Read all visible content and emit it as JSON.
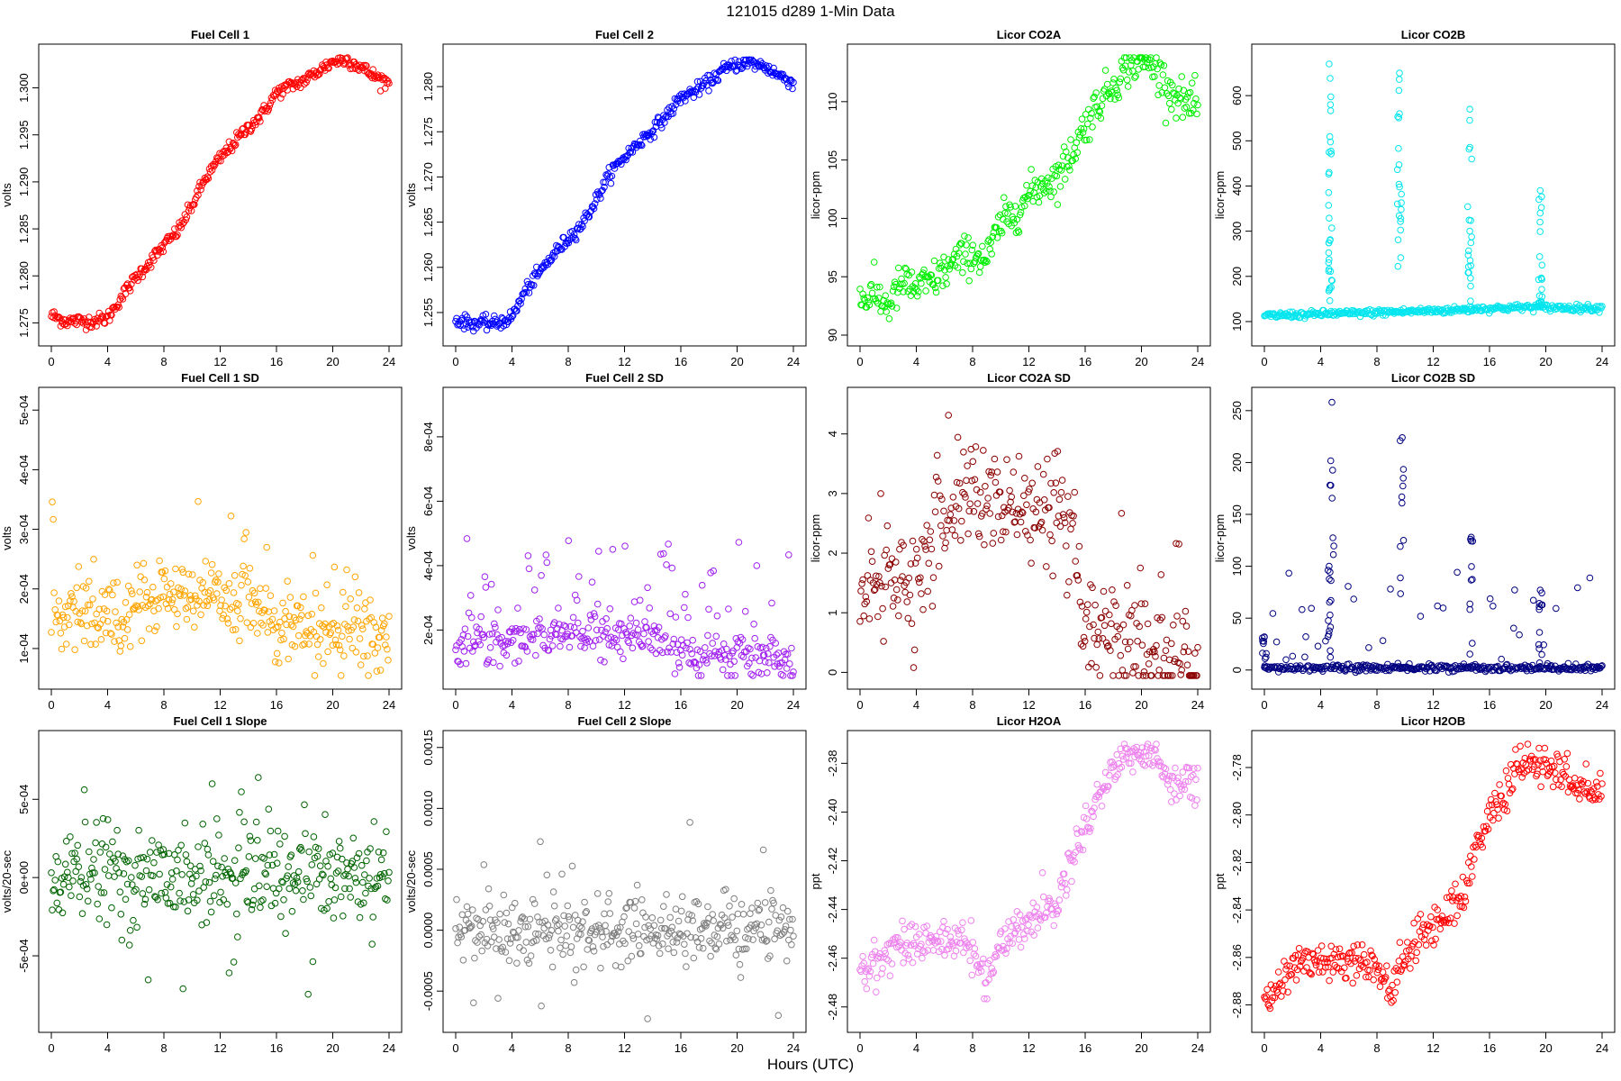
{
  "page": {
    "title": "121015    d289    1-Min Data",
    "xlabel": "Hours (UTC)"
  },
  "chart_data": [
    {
      "type": "scatter",
      "title": "Fuel Cell 1",
      "ylabel": "volts",
      "color": "#ff0000",
      "xlim": [
        0,
        24
      ],
      "xticks": [
        0,
        4,
        8,
        12,
        16,
        20,
        24
      ],
      "xtick_labels": [
        "0",
        "4",
        "8",
        "12",
        "16",
        "20",
        "24"
      ],
      "ylim": [
        1.2737,
        1.3035
      ],
      "yticks": [
        1.275,
        1.28,
        1.285,
        1.29,
        1.295,
        1.3
      ],
      "ytick_labels": [
        "1.275",
        "1.280",
        "1.285",
        "1.290",
        "1.295",
        "1.300"
      ],
      "series": [
        {
          "x": [
            0,
            1,
            2,
            3,
            4,
            5,
            6,
            7,
            8,
            9,
            10,
            11,
            12,
            13,
            14,
            15,
            16,
            17,
            18,
            19,
            20,
            21,
            22,
            23,
            24
          ],
          "y": [
            1.2758,
            1.2752,
            1.2752,
            1.2752,
            1.2755,
            1.2778,
            1.2798,
            1.2815,
            1.2832,
            1.2848,
            1.2875,
            1.2905,
            1.2925,
            1.2942,
            1.2958,
            1.2972,
            1.2995,
            1.3002,
            1.3008,
            1.3018,
            1.3028,
            1.303,
            1.3022,
            1.3012,
            1.3005
          ]
        }
      ]
    },
    {
      "type": "scatter",
      "title": "Fuel Cell 2",
      "ylabel": "volts",
      "color": "#0000ff",
      "xlim": [
        0,
        24
      ],
      "xticks": [
        0,
        4,
        8,
        12,
        16,
        20,
        24
      ],
      "xtick_labels": [
        "0",
        "4",
        "8",
        "12",
        "16",
        "20",
        "24"
      ],
      "ylim": [
        1.2525,
        1.2835
      ],
      "yticks": [
        1.255,
        1.26,
        1.265,
        1.27,
        1.275,
        1.28
      ],
      "ytick_labels": [
        "1.255",
        "1.260",
        "1.265",
        "1.270",
        "1.275",
        "1.280"
      ],
      "series": [
        {
          "x": [
            0,
            1,
            2,
            3,
            4,
            5,
            6,
            7,
            8,
            9,
            10,
            11,
            12,
            13,
            14,
            15,
            16,
            17,
            18,
            19,
            20,
            21,
            22,
            23,
            24
          ],
          "y": [
            1.2542,
            1.2538,
            1.2538,
            1.2538,
            1.2545,
            1.2575,
            1.2595,
            1.2615,
            1.2632,
            1.2648,
            1.2675,
            1.2705,
            1.2722,
            1.2738,
            1.2752,
            1.2768,
            1.2788,
            1.2795,
            1.2805,
            1.2818,
            1.2825,
            1.2826,
            1.2822,
            1.2812,
            1.2805
          ]
        }
      ]
    },
    {
      "type": "scatter",
      "title": "Licor CO2A",
      "ylabel": "licor-ppm",
      "color": "#00ee00",
      "xlim": [
        0,
        24
      ],
      "xticks": [
        0,
        4,
        8,
        12,
        16,
        20,
        24
      ],
      "xtick_labels": [
        "0",
        "4",
        "8",
        "12",
        "16",
        "20",
        "24"
      ],
      "ylim": [
        90,
        114
      ],
      "yticks": [
        90,
        95,
        100,
        105,
        110
      ],
      "ytick_labels": [
        "90",
        "95",
        "100",
        "105",
        "110"
      ],
      "series": [
        {
          "x": [
            0,
            1,
            2,
            3,
            4,
            5,
            6,
            7,
            8,
            9,
            10,
            11,
            12,
            13,
            14,
            15,
            16,
            17,
            18,
            19,
            20,
            21,
            22,
            23,
            24
          ],
          "y": [
            93,
            93.5,
            92.5,
            94.5,
            94,
            94.5,
            95.5,
            96.5,
            97,
            96.5,
            99.5,
            100.5,
            102,
            103,
            103.5,
            105.5,
            108,
            110,
            111.5,
            113,
            113.5,
            113,
            111,
            110,
            109.5
          ]
        }
      ]
    },
    {
      "type": "scatter",
      "title": "Licor CO2B",
      "ylabel": "licor-ppm",
      "color": "#00e5ee",
      "xlim": [
        0,
        24
      ],
      "xticks": [
        0,
        4,
        8,
        12,
        16,
        20,
        24
      ],
      "xtick_labels": [
        "0",
        "4",
        "8",
        "12",
        "16",
        "20",
        "24"
      ],
      "ylim": [
        70,
        690
      ],
      "yticks": [
        100,
        200,
        300,
        400,
        500,
        600
      ],
      "ytick_labels": [
        "100",
        "200",
        "300",
        "400",
        "500",
        "600"
      ],
      "series": [
        {
          "x": [
            0,
            1,
            2,
            3,
            4,
            5,
            6,
            7,
            8,
            9,
            10,
            11,
            12,
            13,
            14,
            15,
            16,
            17,
            18,
            19,
            20,
            21,
            22,
            23,
            24
          ],
          "y": [
            112,
            114,
            115,
            115,
            117,
            118,
            118,
            119,
            120,
            121,
            122,
            123,
            124,
            125,
            126,
            128,
            129,
            130,
            131,
            132,
            131,
            131,
            130,
            130,
            130
          ]
        }
      ],
      "spikes": [
        {
          "x": 4.6,
          "y": 670
        },
        {
          "x": 4.6,
          "y": 430
        },
        {
          "x": 4.7,
          "y": 580
        },
        {
          "x": 9.6,
          "y": 650
        },
        {
          "x": 9.6,
          "y": 560
        },
        {
          "x": 14.6,
          "y": 570
        },
        {
          "x": 14.6,
          "y": 300
        },
        {
          "x": 19.6,
          "y": 390
        },
        {
          "x": 19.6,
          "y": 340
        }
      ]
    },
    {
      "type": "scatter",
      "title": "Fuel Cell 1 SD",
      "ylabel": "volts",
      "color": "#ffa500",
      "xlim": [
        0,
        24
      ],
      "xticks": [
        0,
        4,
        8,
        12,
        16,
        20,
        24
      ],
      "xtick_labels": [
        "0",
        "4",
        "8",
        "12",
        "16",
        "20",
        "24"
      ],
      "ylim": [
        5e-05,
        0.00052
      ],
      "yticks": [
        0.0001,
        0.0002,
        0.0003,
        0.0004,
        0.0005
      ],
      "ytick_labels": [
        "1e-04",
        "2e-04",
        "3e-04",
        "4e-04",
        "5e-04"
      ],
      "series": [
        {
          "x": [
            0,
            4,
            8,
            12,
            15.5,
            16,
            20,
            24
          ],
          "y": [
            0.00015,
            0.00015,
            0.00019,
            0.00018,
            0.00017,
            0.00013,
            0.00012,
            0.00012
          ]
        }
      ]
    },
    {
      "type": "scatter",
      "title": "Fuel Cell 2 SD",
      "ylabel": "volts",
      "color": "#a020f0",
      "xlim": [
        0,
        24
      ],
      "xticks": [
        0,
        4,
        8,
        12,
        16,
        20,
        24
      ],
      "xtick_labels": [
        "0",
        "4",
        "8",
        "12",
        "16",
        "20",
        "24"
      ],
      "ylim": [
        5e-05,
        0.00092
      ],
      "yticks": [
        0.0002,
        0.0004,
        0.0006,
        0.0008
      ],
      "ytick_labels": [
        "2e-04",
        "4e-04",
        "6e-04",
        "8e-04"
      ],
      "series": [
        {
          "x": [
            0,
            4,
            8,
            12,
            15,
            16,
            20,
            24
          ],
          "y": [
            0.00015,
            0.00016,
            0.00019,
            0.00018,
            0.00017,
            0.00013,
            0.00012,
            0.00011
          ]
        }
      ]
    },
    {
      "type": "scatter",
      "title": "Licor CO2A SD",
      "ylabel": "licor-ppm",
      "color": "#8b0000",
      "xlim": [
        0,
        24
      ],
      "xticks": [
        0,
        4,
        8,
        12,
        16,
        20,
        24
      ],
      "xtick_labels": [
        "0",
        "4",
        "8",
        "12",
        "16",
        "20",
        "24"
      ],
      "ylim": [
        -0.1,
        4.6
      ],
      "yticks": [
        0,
        1,
        2,
        3,
        4
      ],
      "ytick_labels": [
        "0",
        "1",
        "2",
        "3",
        "4"
      ],
      "series": [
        {
          "x": [
            0,
            2,
            4,
            5,
            6,
            7,
            8,
            9,
            10,
            12,
            13,
            14,
            15,
            15.5,
            16,
            18,
            20,
            24
          ],
          "y": [
            1.5,
            1.5,
            1.4,
            2.0,
            2.5,
            2.8,
            3.0,
            2.9,
            2.7,
            2.6,
            2.4,
            2.5,
            2.2,
            1.4,
            0.6,
            0.4,
            0.3,
            0.15
          ]
        }
      ]
    },
    {
      "type": "scatter",
      "title": "Licor CO2B SD",
      "ylabel": "licor-ppm",
      "color": "#000080",
      "xlim": [
        0,
        24
      ],
      "xticks": [
        0,
        4,
        8,
        12,
        16,
        20,
        24
      ],
      "xtick_labels": [
        "0",
        "4",
        "8",
        "12",
        "16",
        "20",
        "24"
      ],
      "ylim": [
        -8,
        262
      ],
      "yticks": [
        0,
        50,
        100,
        150,
        200,
        250
      ],
      "ytick_labels": [
        "0",
        "50",
        "100",
        "150",
        "200",
        "250"
      ],
      "series": [
        {
          "x": [
            0,
            24
          ],
          "y": [
            2,
            2
          ]
        }
      ],
      "spikes": [
        {
          "x": 4.8,
          "y": 258
        },
        {
          "x": 9.8,
          "y": 224
        },
        {
          "x": 14.7,
          "y": 128
        },
        {
          "x": 4.6,
          "y": 100
        },
        {
          "x": 19.6,
          "y": 77
        },
        {
          "x": 0,
          "y": 32
        }
      ]
    },
    {
      "type": "scatter",
      "title": "Fuel Cell 1 Slope",
      "ylabel": "volts/20-sec",
      "color": "#006400",
      "xlim": [
        0,
        24
      ],
      "xticks": [
        0,
        4,
        8,
        12,
        16,
        20,
        24
      ],
      "xtick_labels": [
        "0",
        "4",
        "8",
        "12",
        "16",
        "20",
        "24"
      ],
      "ylim": [
        -0.00092,
        0.00087
      ],
      "yticks": [
        -0.0005,
        0,
        0.0005
      ],
      "ytick_labels": [
        "-5e-04",
        "0e+00",
        "5e-04"
      ],
      "series": [
        {
          "x": [
            0,
            24
          ],
          "y": [
            0,
            0
          ]
        }
      ]
    },
    {
      "type": "scatter",
      "title": "Fuel Cell 2 Slope",
      "ylabel": "volts/20-sec",
      "color": "#808080",
      "xlim": [
        0,
        24
      ],
      "xticks": [
        0,
        4,
        8,
        12,
        16,
        20,
        24
      ],
      "xtick_labels": [
        "0",
        "4",
        "8",
        "12",
        "16",
        "20",
        "24"
      ],
      "ylim": [
        -0.00075,
        0.00155
      ],
      "yticks": [
        -0.0005,
        0,
        0.0005,
        0.001,
        0.0015
      ],
      "ytick_labels": [
        "-0.0005",
        "0.0000",
        "0.0005",
        "0.0010",
        "0.0015"
      ],
      "series": [
        {
          "x": [
            0,
            24
          ],
          "y": [
            0,
            0
          ]
        }
      ]
    },
    {
      "type": "scatter",
      "title": "Licor H2OA",
      "ylabel": "ppt",
      "color": "#ee82ee",
      "xlim": [
        0,
        24
      ],
      "xticks": [
        0,
        4,
        8,
        12,
        16,
        20,
        24
      ],
      "xtick_labels": [
        "0",
        "4",
        "8",
        "12",
        "16",
        "20",
        "24"
      ],
      "ylim": [
        -2.486,
        -2.371
      ],
      "yticks": [
        -2.48,
        -2.46,
        -2.44,
        -2.42,
        -2.4,
        -2.38
      ],
      "ytick_labels": [
        "-2.48",
        "-2.46",
        "-2.44",
        "-2.42",
        "-2.40",
        "-2.38"
      ],
      "series": [
        {
          "x": [
            0,
            1,
            2,
            3,
            4,
            5,
            6,
            7,
            8,
            9,
            10,
            11,
            12,
            13,
            14,
            15,
            16,
            17,
            18,
            19,
            20,
            21,
            22,
            23,
            24
          ],
          "y": [
            -2.468,
            -2.462,
            -2.458,
            -2.452,
            -2.454,
            -2.452,
            -2.454,
            -2.452,
            -2.458,
            -2.468,
            -2.455,
            -2.448,
            -2.445,
            -2.44,
            -2.438,
            -2.42,
            -2.405,
            -2.394,
            -2.38,
            -2.376,
            -2.377,
            -2.378,
            -2.386,
            -2.388,
            -2.388
          ]
        }
      ]
    },
    {
      "type": "scatter",
      "title": "Licor H2OB",
      "ylabel": "ppt",
      "color": "#ff0000",
      "xlim": [
        0,
        24
      ],
      "xticks": [
        0,
        4,
        8,
        12,
        16,
        20,
        24
      ],
      "xtick_labels": [
        "0",
        "4",
        "8",
        "12",
        "16",
        "20",
        "24"
      ],
      "ylim": [
        -2.887,
        -2.769
      ],
      "yticks": [
        -2.88,
        -2.86,
        -2.84,
        -2.82,
        -2.8,
        -2.78
      ],
      "ytick_labels": [
        "-2.88",
        "-2.86",
        "-2.84",
        "-2.82",
        "-2.80",
        "-2.78"
      ],
      "series": [
        {
          "x": [
            0,
            1,
            2,
            3,
            4,
            5,
            6,
            7,
            8,
            9,
            10,
            11,
            12,
            13,
            14,
            15,
            16,
            17,
            18,
            19,
            20,
            21,
            22,
            23,
            24
          ],
          "y": [
            -2.88,
            -2.872,
            -2.866,
            -2.86,
            -2.862,
            -2.86,
            -2.862,
            -2.86,
            -2.864,
            -2.874,
            -2.86,
            -2.852,
            -2.846,
            -2.84,
            -2.836,
            -2.815,
            -2.8,
            -2.792,
            -2.78,
            -2.778,
            -2.78,
            -2.782,
            -2.788,
            -2.79,
            -2.79
          ]
        }
      ]
    }
  ]
}
